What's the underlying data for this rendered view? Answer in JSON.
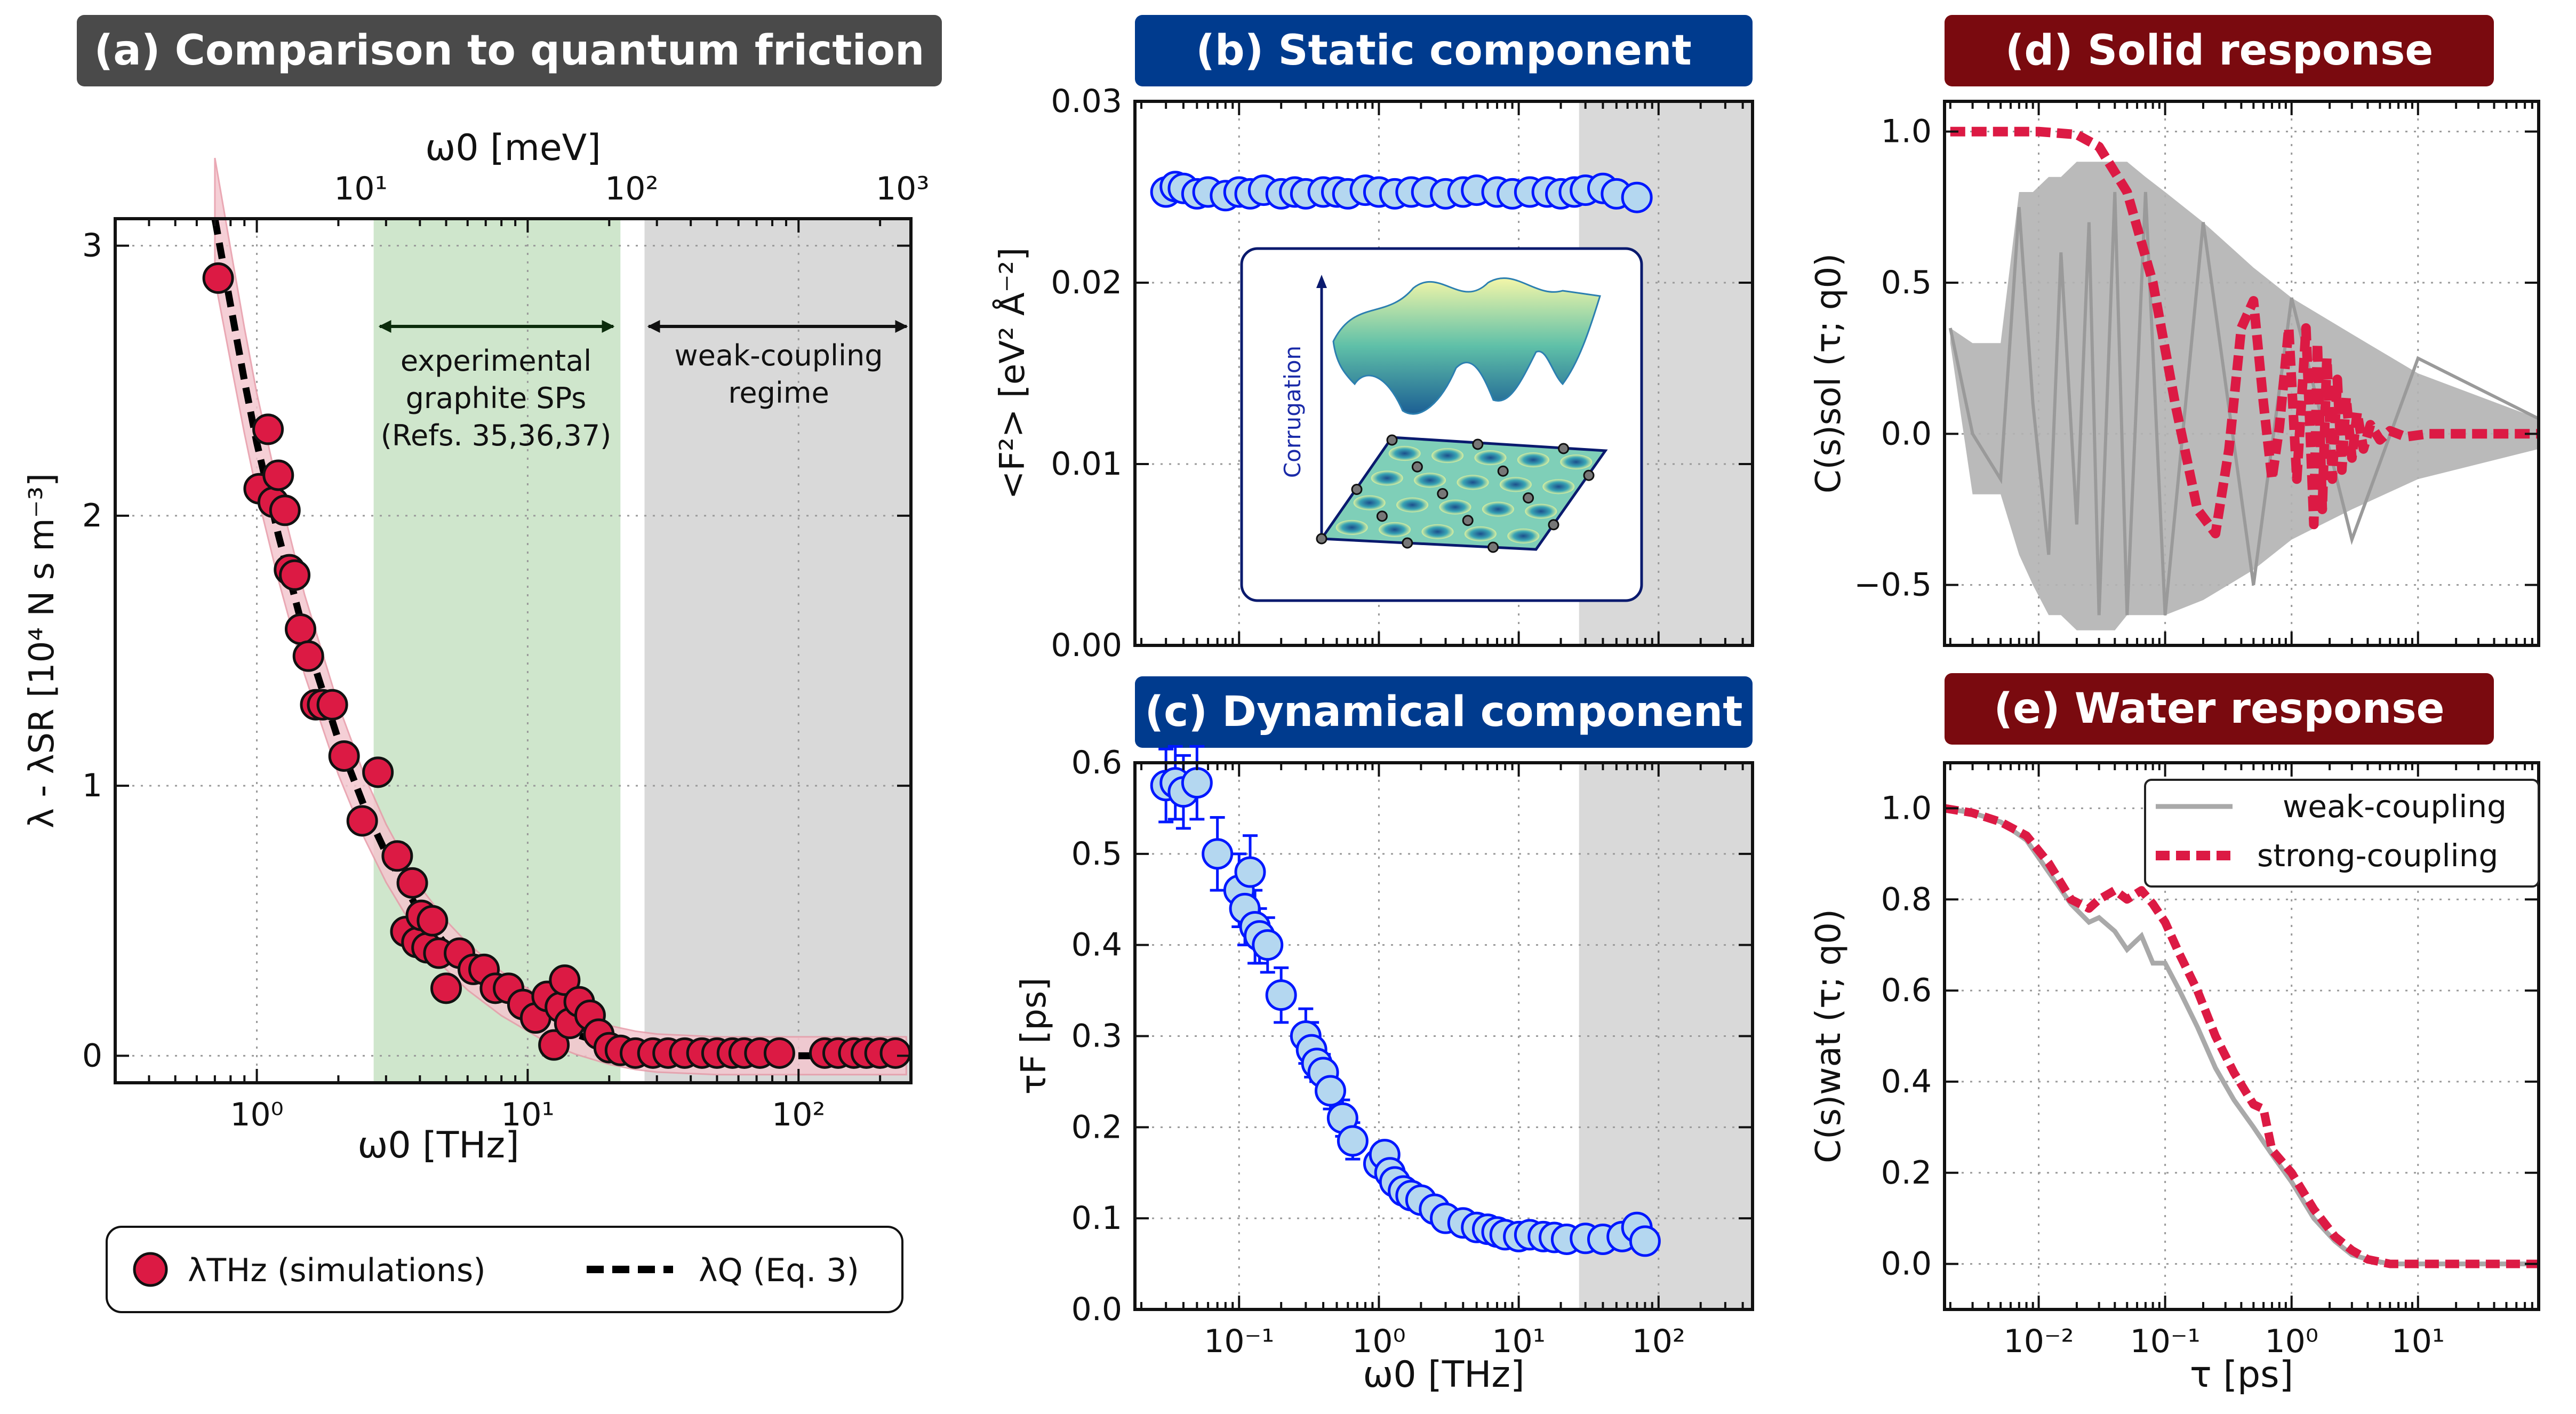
{
  "panels": {
    "a": {
      "letter": "(a)",
      "title": "Comparison to quantum friction",
      "bg": "#4a4a4a"
    },
    "b": {
      "letter": "(b)",
      "title": "Static component",
      "bg": "#003b8e"
    },
    "c": {
      "letter": "(c)",
      "title": "Dynamical component",
      "bg": "#003b8e"
    },
    "d": {
      "letter": "(d)",
      "title": "Solid response",
      "bg": "#7a0a0f"
    },
    "e": {
      "letter": "(e)",
      "title": "Water response",
      "bg": "#7a0a0f"
    }
  },
  "labels": {
    "a_xlabel": "ω0 [THz]",
    "a_top_xlabel": "ω0 [meV]",
    "a_ylabel": "λ - λSR [10⁴ N s m⁻³]",
    "a_region1": [
      "experimental",
      "graphite SPs",
      "(Refs. 35,36,37)"
    ],
    "a_region2": [
      "weak-coupling",
      "regime"
    ],
    "b_ylabel": "<F²> [eV² Å⁻²]",
    "b_inset_axis": "Corrugation",
    "c_xlabel": "ω0 [THz]",
    "c_ylabel": "τF [ps]",
    "d_ylabel": "C(s)sol (τ; q0)",
    "e_ylabel": "C(s)wat (τ; q0)",
    "e_xlabel": "τ [ps]"
  },
  "legend_a": [
    {
      "label": "λTHz (simulations)",
      "kind": "marker"
    },
    {
      "label": "λQ (Eq. 3)",
      "kind": "dashed"
    }
  ],
  "legend_e": [
    {
      "label": "weak-coupling",
      "kind": "gray"
    },
    {
      "label": "strong-coupling",
      "kind": "reddash"
    }
  ],
  "colors": {
    "red": "#dc1a44",
    "blue": "#0018ff",
    "lightblue": "#b4d7f0",
    "gray": "#a9a9a9",
    "green": "#cfe6cc",
    "shade": "#d9d9d9",
    "pinkband": "#f4c7cf"
  },
  "chart_data": [
    {
      "id": "a",
      "type": "scatter",
      "title": "Comparison to quantum friction",
      "xlabel": "ω0 [THz]",
      "ylabel": "λ - λSR [10⁴ N s m⁻³]",
      "xscale": "log",
      "xlim": [
        0.3,
        260
      ],
      "ylim": [
        -0.1,
        3.1
      ],
      "xticks": [
        {
          "v": 1,
          "t": "10⁰"
        },
        {
          "v": 10,
          "t": "10¹"
        },
        {
          "v": 100,
          "t": "10²"
        }
      ],
      "yticks": [
        {
          "v": 0,
          "t": "0"
        },
        {
          "v": 1,
          "t": "1"
        },
        {
          "v": 2,
          "t": "2"
        },
        {
          "v": 3,
          "t": "3"
        }
      ],
      "top_axis": {
        "label": "ω0 [meV]",
        "ticks": [
          {
            "v": 2.42,
            "t": "10¹"
          },
          {
            "v": 24.2,
            "t": "10²"
          },
          {
            "v": 242,
            "t": "10³"
          }
        ]
      },
      "regions": [
        {
          "x0": 2.7,
          "x1": 22,
          "name": "experimental graphite SPs"
        },
        {
          "x0": 27,
          "x1": 260,
          "name": "weak-coupling regime"
        }
      ],
      "series": [
        {
          "name": "λTHz (simulations)",
          "x": [
            0.72,
            1.02,
            1.1,
            1.15,
            1.2,
            1.27,
            1.32,
            1.38,
            1.45,
            1.55,
            1.65,
            1.75,
            1.9,
            2.1,
            2.45,
            2.8,
            3.3,
            3.55,
            3.75,
            3.9,
            4.05,
            4.25,
            4.45,
            4.7,
            5.0,
            5.6,
            6.3,
            6.9,
            7.6,
            8.5,
            9.6,
            10.7,
            11.8,
            12.5,
            13.2,
            13.7,
            14.3,
            15.5,
            17,
            18.3,
            20,
            22,
            25,
            29,
            33,
            38,
            44,
            50,
            57,
            63,
            72,
            85,
            125,
            140,
            160,
            178,
            200,
            228
          ],
          "y": [
            2.88,
            2.1,
            2.32,
            2.05,
            2.15,
            2.02,
            1.8,
            1.78,
            1.58,
            1.48,
            1.3,
            1.3,
            1.3,
            1.11,
            0.87,
            1.05,
            0.74,
            0.46,
            0.64,
            0.42,
            0.52,
            0.4,
            0.5,
            0.38,
            0.25,
            0.38,
            0.32,
            0.32,
            0.25,
            0.25,
            0.19,
            0.14,
            0.22,
            0.04,
            0.18,
            0.28,
            0.12,
            0.2,
            0.15,
            0.08,
            0.03,
            0.02,
            0.01,
            0.01,
            0.01,
            0.01,
            0.01,
            0.01,
            0.01,
            0.01,
            0.01,
            0.01,
            0.01,
            0.01,
            0.01,
            0.01,
            0.01,
            0.01
          ]
        },
        {
          "name": "λQ (Eq. 3)",
          "x": [
            0.7,
            0.8,
            0.9,
            1.0,
            1.2,
            1.5,
            2.0,
            2.5,
            3.0,
            4.0,
            5.0,
            6.0,
            8.0,
            10,
            12,
            15,
            20,
            25,
            30,
            50,
            100,
            250
          ],
          "y": [
            3.1,
            2.78,
            2.5,
            2.27,
            1.93,
            1.56,
            1.17,
            0.92,
            0.75,
            0.53,
            0.41,
            0.33,
            0.23,
            0.17,
            0.12,
            0.08,
            0.04,
            0.02,
            0.01,
            0.0,
            0.0,
            0.0
          ]
        }
      ]
    },
    {
      "id": "b",
      "type": "scatter",
      "title": "Static component",
      "xlabel": "",
      "ylabel": "<F²> [eV² Å⁻²]",
      "xscale": "log",
      "xlim": [
        0.018,
        470
      ],
      "ylim": [
        0,
        0.03
      ],
      "yticks": [
        {
          "v": 0,
          "t": "0.00"
        },
        {
          "v": 0.01,
          "t": "0.01"
        },
        {
          "v": 0.02,
          "t": "0.02"
        },
        {
          "v": 0.03,
          "t": "0.03"
        }
      ],
      "shaded_from": 27,
      "series": [
        {
          "name": "static",
          "x": [
            0.03,
            0.035,
            0.04,
            0.05,
            0.06,
            0.08,
            0.1,
            0.12,
            0.15,
            0.2,
            0.25,
            0.3,
            0.4,
            0.5,
            0.6,
            0.8,
            1.0,
            1.3,
            1.7,
            2.2,
            3,
            4,
            5,
            7,
            9,
            12,
            16,
            20,
            25,
            30,
            40,
            50,
            70
          ],
          "y": [
            0.025,
            0.0253,
            0.0252,
            0.0249,
            0.025,
            0.0248,
            0.025,
            0.0249,
            0.0251,
            0.0249,
            0.025,
            0.0249,
            0.025,
            0.025,
            0.0249,
            0.0251,
            0.025,
            0.0249,
            0.025,
            0.025,
            0.0249,
            0.025,
            0.0251,
            0.025,
            0.0249,
            0.025,
            0.025,
            0.0249,
            0.025,
            0.0251,
            0.0252,
            0.0249,
            0.0247
          ]
        }
      ]
    },
    {
      "id": "c",
      "type": "scatter",
      "title": "Dynamical component",
      "xlabel": "ω0 [THz]",
      "ylabel": "τF [ps]",
      "xscale": "log",
      "xlim": [
        0.018,
        470
      ],
      "ylim": [
        0,
        0.6
      ],
      "xticks": [
        {
          "v": 0.1,
          "t": "10⁻¹"
        },
        {
          "v": 1,
          "t": "10⁰"
        },
        {
          "v": 10,
          "t": "10¹"
        },
        {
          "v": 100,
          "t": "10²"
        }
      ],
      "yticks": [
        {
          "v": 0,
          "t": "0.0"
        },
        {
          "v": 0.1,
          "t": "0.1"
        },
        {
          "v": 0.2,
          "t": "0.2"
        },
        {
          "v": 0.3,
          "t": "0.3"
        },
        {
          "v": 0.4,
          "t": "0.4"
        },
        {
          "v": 0.5,
          "t": "0.5"
        },
        {
          "v": 0.6,
          "t": "0.6"
        }
      ],
      "shaded_from": 27,
      "series": [
        {
          "name": "tauF",
          "x": [
            0.03,
            0.035,
            0.04,
            0.05,
            0.07,
            0.1,
            0.11,
            0.12,
            0.13,
            0.14,
            0.16,
            0.2,
            0.3,
            0.33,
            0.36,
            0.4,
            0.45,
            0.55,
            0.65,
            1.0,
            1.1,
            1.2,
            1.3,
            1.5,
            1.7,
            2.0,
            2.5,
            3,
            4,
            5,
            6,
            7,
            8,
            10,
            12,
            15,
            18,
            22,
            30,
            40,
            55,
            70,
            80
          ],
          "y": [
            0.575,
            0.578,
            0.568,
            0.578,
            0.5,
            0.46,
            0.44,
            0.48,
            0.42,
            0.41,
            0.4,
            0.345,
            0.3,
            0.285,
            0.27,
            0.26,
            0.24,
            0.21,
            0.185,
            0.16,
            0.17,
            0.15,
            0.14,
            0.13,
            0.125,
            0.12,
            0.11,
            0.1,
            0.095,
            0.09,
            0.088,
            0.085,
            0.082,
            0.08,
            0.082,
            0.08,
            0.079,
            0.077,
            0.078,
            0.077,
            0.08,
            0.09,
            0.075
          ],
          "yerr": [
            0.04,
            0.04,
            0.04,
            0.04,
            0.04,
            0.04,
            0.04,
            0.04,
            0.04,
            0.03,
            0.03,
            0.03,
            0.03,
            0.03,
            0.02,
            0.02,
            0.02,
            0.02,
            0.02,
            0.01,
            0.01,
            0.01,
            0.01,
            0.01,
            0.01,
            0.01,
            0.01,
            0.01,
            0.01,
            0.01,
            0.01,
            0.01,
            0.01,
            0.01,
            0.01,
            0.01,
            0.01,
            0.01,
            0.01,
            0.01,
            0.01,
            0.01,
            0.01
          ]
        }
      ]
    },
    {
      "id": "d",
      "type": "line",
      "title": "Solid response",
      "xlabel": "",
      "ylabel": "C(s)sol (τ; q0)",
      "xscale": "log",
      "xlim": [
        0.0018,
        90
      ],
      "ylim": [
        -0.7,
        1.1
      ],
      "yticks": [
        {
          "v": -0.5,
          "t": "−0.5"
        },
        {
          "v": 0,
          "t": "0.0"
        },
        {
          "v": 0.5,
          "t": "0.5"
        },
        {
          "v": 1.0,
          "t": "1.0"
        }
      ],
      "series": [
        {
          "name": "weak-coupling",
          "x": [
            0.002,
            0.003,
            0.005,
            0.007,
            0.009,
            0.012,
            0.015,
            0.02,
            0.025,
            0.03,
            0.04,
            0.05,
            0.07,
            0.1,
            0.2,
            0.5,
            1,
            3,
            10,
            90
          ],
          "y": [
            0.35,
            0.0,
            -0.15,
            0.75,
            0.1,
            -0.4,
            0.6,
            -0.3,
            0.7,
            -0.6,
            0.8,
            -0.6,
            0.8,
            -0.6,
            0.7,
            -0.5,
            0.45,
            -0.35,
            0.25,
            0.05
          ],
          "envelope_top": [
            0.35,
            0.3,
            0.3,
            0.8,
            0.8,
            0.85,
            0.85,
            0.9,
            0.9,
            0.9,
            0.9,
            0.9,
            0.85,
            0.8,
            0.7,
            0.55,
            0.45,
            0.33,
            0.2,
            0.05
          ],
          "envelope_bottom": [
            0.3,
            -0.2,
            -0.2,
            -0.4,
            -0.5,
            -0.6,
            -0.6,
            -0.65,
            -0.65,
            -0.65,
            -0.65,
            -0.6,
            -0.6,
            -0.6,
            -0.55,
            -0.45,
            -0.35,
            -0.25,
            -0.15,
            -0.05
          ]
        },
        {
          "name": "strong-coupling",
          "x": [
            0.002,
            0.01,
            0.02,
            0.03,
            0.05,
            0.08,
            0.12,
            0.18,
            0.25,
            0.32,
            0.4,
            0.5,
            0.6,
            0.7,
            0.8,
            0.95,
            1.1,
            1.3,
            1.5,
            1.6,
            1.75,
            1.9,
            2.1,
            2.3,
            2.5,
            2.7,
            3.0,
            3.3,
            3.7,
            4.2,
            5,
            6,
            8,
            12,
            20,
            40,
            90
          ],
          "y": [
            1.0,
            1.0,
            0.99,
            0.95,
            0.8,
            0.5,
            0.1,
            -0.25,
            -0.33,
            -0.05,
            0.35,
            0.44,
            0.1,
            -0.15,
            0.02,
            0.35,
            -0.15,
            0.35,
            -0.3,
            0.3,
            -0.25,
            0.25,
            -0.15,
            0.18,
            -0.12,
            0.12,
            -0.08,
            0.07,
            -0.05,
            0.03,
            -0.02,
            0.01,
            -0.01,
            0.0,
            0.0,
            0.0,
            0.0
          ]
        }
      ]
    },
    {
      "id": "e",
      "type": "line",
      "title": "Water response",
      "xlabel": "τ [ps]",
      "ylabel": "C(s)wat (τ; q0)",
      "xscale": "log",
      "xlim": [
        0.0018,
        90
      ],
      "ylim": [
        -0.1,
        1.1
      ],
      "xticks": [
        {
          "v": 0.01,
          "t": "10⁻²"
        },
        {
          "v": 0.1,
          "t": "10⁻¹"
        },
        {
          "v": 1,
          "t": "10⁰"
        },
        {
          "v": 10,
          "t": "10¹"
        }
      ],
      "yticks": [
        {
          "v": 0,
          "t": "0.0"
        },
        {
          "v": 0.2,
          "t": "0.2"
        },
        {
          "v": 0.4,
          "t": "0.4"
        },
        {
          "v": 0.6,
          "t": "0.6"
        },
        {
          "v": 0.8,
          "t": "0.8"
        },
        {
          "v": 1.0,
          "t": "1.0"
        }
      ],
      "series": [
        {
          "name": "weak-coupling",
          "x": [
            0.0018,
            0.003,
            0.005,
            0.008,
            0.012,
            0.018,
            0.025,
            0.03,
            0.04,
            0.05,
            0.065,
            0.08,
            0.1,
            0.13,
            0.18,
            0.25,
            0.35,
            0.5,
            0.7,
            1.0,
            1.5,
            2.2,
            3,
            4,
            6,
            10,
            20,
            90
          ],
          "y": [
            1.0,
            0.99,
            0.97,
            0.93,
            0.86,
            0.79,
            0.75,
            0.76,
            0.73,
            0.69,
            0.72,
            0.66,
            0.66,
            0.6,
            0.52,
            0.43,
            0.36,
            0.3,
            0.24,
            0.18,
            0.1,
            0.05,
            0.02,
            0.01,
            0.0,
            0.0,
            0.0,
            0.0
          ]
        },
        {
          "name": "strong-coupling",
          "x": [
            0.0018,
            0.003,
            0.005,
            0.008,
            0.012,
            0.018,
            0.025,
            0.03,
            0.04,
            0.05,
            0.065,
            0.08,
            0.1,
            0.13,
            0.18,
            0.25,
            0.35,
            0.5,
            0.6,
            0.7,
            1.0,
            1.5,
            2.2,
            3,
            4,
            6,
            10,
            20,
            90
          ],
          "y": [
            1.0,
            0.99,
            0.97,
            0.94,
            0.88,
            0.8,
            0.78,
            0.8,
            0.82,
            0.8,
            0.82,
            0.79,
            0.75,
            0.68,
            0.6,
            0.5,
            0.42,
            0.35,
            0.34,
            0.25,
            0.2,
            0.12,
            0.06,
            0.03,
            0.01,
            0.0,
            0.0,
            0.0,
            0.0
          ]
        }
      ]
    }
  ]
}
